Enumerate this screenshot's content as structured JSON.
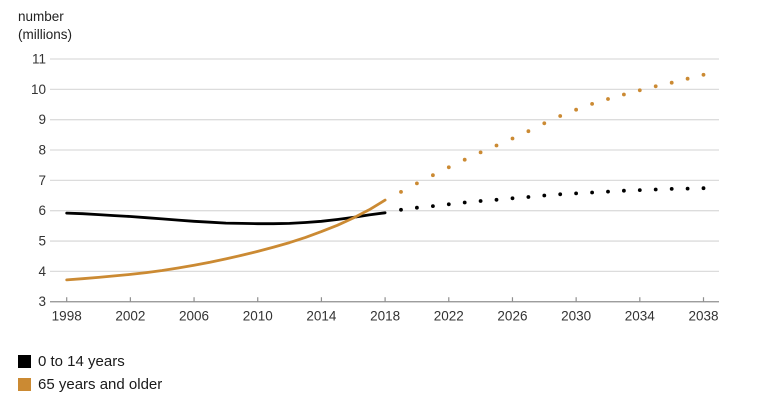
{
  "chart": {
    "axis_title": "number\n(millions)"
  },
  "chart_data": {
    "type": "line",
    "title": "",
    "ylabel": "number (millions)",
    "xlabel": "",
    "grid": "horizontal",
    "legend_position": "bottom-left",
    "xlim": [
      1997,
      2039
    ],
    "ylim": [
      3,
      11
    ],
    "x_ticks": [
      1998,
      2002,
      2006,
      2010,
      2014,
      2018,
      2022,
      2026,
      2030,
      2034,
      2038
    ],
    "y_ticks": [
      3,
      4,
      5,
      6,
      7,
      8,
      9,
      10,
      11
    ],
    "observed_start_year": 1998,
    "projected_start_year": 2019,
    "colors": {
      "gridline": "#dcdcdc",
      "axis": "#8f8f8f",
      "tick_label": "#333333"
    },
    "series": [
      {
        "name": "0 to 14 years",
        "color": "#000000",
        "observed_style": "solid",
        "projected_style": "dotted",
        "values_observed": [
          5.92,
          5.9,
          5.87,
          5.84,
          5.81,
          5.77,
          5.73,
          5.69,
          5.65,
          5.62,
          5.59,
          5.58,
          5.57,
          5.57,
          5.58,
          5.61,
          5.65,
          5.71,
          5.78,
          5.86,
          5.93
        ],
        "values_projected": [
          6.03,
          6.1,
          6.15,
          6.21,
          6.27,
          6.32,
          6.36,
          6.41,
          6.45,
          6.5,
          6.54,
          6.57,
          6.6,
          6.63,
          6.66,
          6.68,
          6.7,
          6.72,
          6.73,
          6.74
        ]
      },
      {
        "name": "65 years and older",
        "color": "#CB8A33",
        "observed_style": "solid",
        "projected_style": "dotted",
        "values_observed": [
          3.72,
          3.76,
          3.8,
          3.85,
          3.9,
          3.96,
          4.03,
          4.11,
          4.2,
          4.3,
          4.41,
          4.53,
          4.66,
          4.8,
          4.95,
          5.12,
          5.31,
          5.52,
          5.76,
          6.03,
          6.35
        ],
        "values_projected": [
          6.62,
          6.9,
          7.17,
          7.43,
          7.68,
          7.92,
          8.15,
          8.38,
          8.62,
          8.88,
          9.12,
          9.33,
          9.52,
          9.68,
          9.83,
          9.97,
          10.1,
          10.22,
          10.35,
          10.48
        ]
      }
    ]
  }
}
